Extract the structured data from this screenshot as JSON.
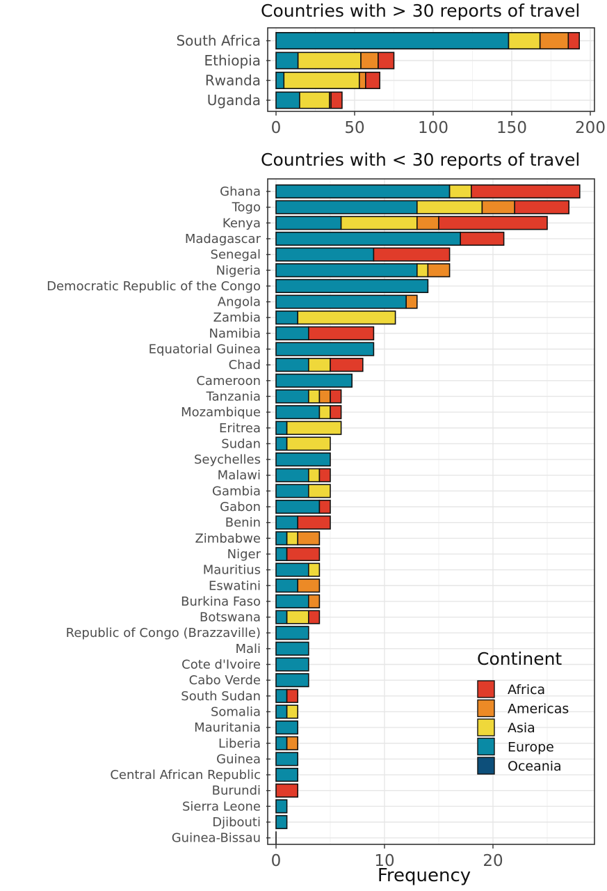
{
  "colors": {
    "Africa": "#e03c2a",
    "Americas": "#ec8a26",
    "Asia": "#efd83a",
    "Europe": "#0a8aa5",
    "Oceania": "#0d4f7a"
  },
  "continent_order": [
    "Europe",
    "Asia",
    "Americas",
    "Africa",
    "Oceania"
  ],
  "chart_data": [
    {
      "type": "bar",
      "orientation": "horizontal",
      "stacked": true,
      "title": "Countries with > 30 reports of travel",
      "xlim": [
        0,
        200
      ],
      "ticks": [
        0,
        50,
        100,
        150,
        200
      ],
      "categories": [
        "South Africa",
        "Ethiopia",
        "Rwanda",
        "Uganda"
      ],
      "series": [
        {
          "name": "Europe",
          "values": [
            148,
            14,
            5,
            15
          ]
        },
        {
          "name": "Asia",
          "values": [
            20,
            40,
            48,
            19
          ]
        },
        {
          "name": "Americas",
          "values": [
            18,
            11,
            4,
            1
          ]
        },
        {
          "name": "Africa",
          "values": [
            7,
            10,
            9,
            7
          ]
        },
        {
          "name": "Oceania",
          "values": [
            0,
            0,
            0,
            0
          ]
        }
      ],
      "grid": true
    },
    {
      "type": "bar",
      "orientation": "horizontal",
      "stacked": true,
      "title": "Countries with < 30 reports of travel",
      "xlabel": "Frequency",
      "xlim": [
        0,
        28
      ],
      "ticks": [
        0,
        10,
        20
      ],
      "categories": [
        "Ghana",
        "Togo",
        "Kenya",
        "Madagascar",
        "Senegal",
        "Nigeria",
        "Democratic Republic of the Congo",
        "Angola",
        "Zambia",
        "Namibia",
        "Equatorial Guinea",
        "Chad",
        "Cameroon",
        "Tanzania",
        "Mozambique",
        "Eritrea",
        "Sudan",
        "Seychelles",
        "Malawi",
        "Gambia",
        "Gabon",
        "Benin",
        "Zimbabwe",
        "Niger",
        "Mauritius",
        "Eswatini",
        "Burkina Faso",
        "Botswana",
        "Republic of Congo (Brazzaville)",
        "Mali",
        "Cote d'Ivoire",
        "Cabo Verde",
        "South Sudan",
        "Somalia",
        "Mauritania",
        "Liberia",
        "Guinea",
        "Central African Republic",
        "Burundi",
        "Sierra Leone",
        "Djibouti",
        "Guinea-Bissau"
      ],
      "series": [
        {
          "name": "Europe",
          "values": [
            16,
            13,
            6,
            17,
            9,
            13,
            14,
            12,
            2,
            3,
            9,
            3,
            7,
            3,
            4,
            1,
            1,
            5,
            3,
            3,
            4,
            2,
            1,
            1,
            3,
            2,
            3,
            1,
            3,
            3,
            3,
            3,
            1,
            1,
            2,
            1,
            2,
            2,
            0,
            1,
            1,
            0
          ]
        },
        {
          "name": "Asia",
          "values": [
            2,
            6,
            7,
            0,
            0,
            1,
            0,
            0,
            9,
            0,
            0,
            2,
            0,
            1,
            1,
            5,
            4,
            0,
            1,
            2,
            0,
            0,
            1,
            0,
            1,
            0,
            0,
            2,
            0,
            0,
            0,
            0,
            0,
            1,
            0,
            0,
            0,
            0,
            0,
            0,
            0,
            0
          ]
        },
        {
          "name": "Americas",
          "values": [
            0,
            3,
            2,
            0,
            0,
            2,
            0,
            1,
            0,
            0,
            0,
            0,
            0,
            1,
            0,
            0,
            0,
            0,
            0,
            0,
            0,
            0,
            2,
            0,
            0,
            2,
            1,
            0,
            0,
            0,
            0,
            0,
            0,
            0,
            0,
            1,
            0,
            0,
            0,
            0,
            0,
            0
          ]
        },
        {
          "name": "Africa",
          "values": [
            10,
            5,
            10,
            4,
            7,
            0,
            0,
            0,
            0,
            6,
            0,
            3,
            0,
            1,
            1,
            0,
            0,
            0,
            1,
            0,
            1,
            3,
            0,
            3,
            0,
            0,
            0,
            1,
            0,
            0,
            0,
            0,
            1,
            0,
            0,
            0,
            0,
            0,
            2,
            0,
            0,
            0
          ]
        },
        {
          "name": "Oceania",
          "values": [
            0,
            0,
            0,
            0,
            0,
            0,
            0,
            0,
            0,
            0,
            0,
            0,
            0,
            0,
            0,
            0,
            0,
            0,
            0,
            0,
            0,
            0,
            0,
            0,
            0,
            0,
            0,
            0,
            0,
            0,
            0,
            0,
            0,
            0,
            0,
            0,
            0,
            0,
            0,
            0,
            0,
            0
          ]
        }
      ],
      "grid": true,
      "legend": {
        "title": "Continent",
        "entries": [
          "Africa",
          "Americas",
          "Asia",
          "Europe",
          "Oceania"
        ],
        "placement": "bottom-right"
      }
    }
  ]
}
